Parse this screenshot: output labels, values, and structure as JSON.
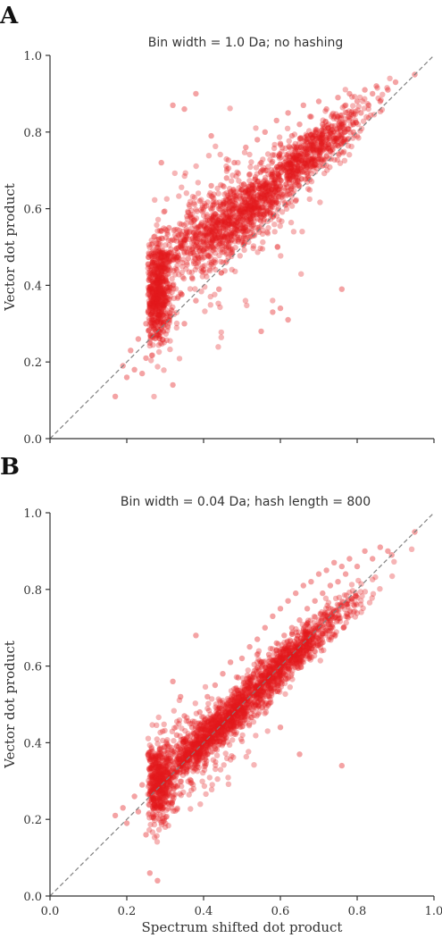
{
  "chart_data": [
    {
      "type": "scatter",
      "panel_letter": "A",
      "title": "Bin width = 1.0 Da; no hashing",
      "xlabel": "",
      "ylabel": "Vector dot product",
      "xlim": [
        0.0,
        1.0
      ],
      "ylim": [
        0.0,
        1.0
      ],
      "xticks": [
        "0.0",
        "0.2",
        "0.4",
        "0.6",
        "0.8",
        "1.0"
      ],
      "yticks": [
        "0.0",
        "0.2",
        "0.4",
        "0.6",
        "0.8",
        "1.0"
      ],
      "show_xtick_labels": false,
      "grid": false,
      "reference_line": "y = x",
      "point_color": "#e41a1c",
      "line_color": "#808080",
      "points": [
        [
          0.17,
          0.11
        ],
        [
          0.19,
          0.19
        ],
        [
          0.2,
          0.16
        ],
        [
          0.21,
          0.23
        ],
        [
          0.22,
          0.18
        ],
        [
          0.23,
          0.26
        ],
        [
          0.24,
          0.17
        ],
        [
          0.25,
          0.3
        ],
        [
          0.25,
          0.21
        ],
        [
          0.26,
          0.34
        ],
        [
          0.26,
          0.25
        ],
        [
          0.27,
          0.29
        ],
        [
          0.27,
          0.38
        ],
        [
          0.28,
          0.27
        ],
        [
          0.28,
          0.45
        ],
        [
          0.29,
          0.33
        ],
        [
          0.29,
          0.41
        ],
        [
          0.3,
          0.36
        ],
        [
          0.3,
          0.48
        ],
        [
          0.31,
          0.31
        ],
        [
          0.31,
          0.55
        ],
        [
          0.32,
          0.4
        ],
        [
          0.32,
          0.14
        ],
        [
          0.33,
          0.44
        ],
        [
          0.34,
          0.38
        ],
        [
          0.34,
          0.51
        ],
        [
          0.35,
          0.3
        ],
        [
          0.36,
          0.47
        ],
        [
          0.36,
          0.59
        ],
        [
          0.37,
          0.42
        ],
        [
          0.38,
          0.53
        ],
        [
          0.38,
          0.36
        ],
        [
          0.39,
          0.62
        ],
        [
          0.4,
          0.49
        ],
        [
          0.4,
          0.44
        ],
        [
          0.41,
          0.57
        ],
        [
          0.42,
          0.51
        ],
        [
          0.42,
          0.66
        ],
        [
          0.43,
          0.46
        ],
        [
          0.44,
          0.6
        ],
        [
          0.44,
          0.39
        ],
        [
          0.45,
          0.55
        ],
        [
          0.46,
          0.68
        ],
        [
          0.46,
          0.5
        ],
        [
          0.47,
          0.63
        ],
        [
          0.48,
          0.56
        ],
        [
          0.48,
          0.72
        ],
        [
          0.49,
          0.52
        ],
        [
          0.5,
          0.65
        ],
        [
          0.5,
          0.6
        ],
        [
          0.51,
          0.76
        ],
        [
          0.52,
          0.58
        ],
        [
          0.52,
          0.69
        ],
        [
          0.53,
          0.63
        ],
        [
          0.54,
          0.78
        ],
        [
          0.54,
          0.55
        ],
        [
          0.55,
          0.72
        ],
        [
          0.56,
          0.66
        ],
        [
          0.56,
          0.8
        ],
        [
          0.57,
          0.62
        ],
        [
          0.58,
          0.74
        ],
        [
          0.58,
          0.69
        ],
        [
          0.59,
          0.83
        ],
        [
          0.6,
          0.66
        ],
        [
          0.6,
          0.77
        ],
        [
          0.61,
          0.72
        ],
        [
          0.62,
          0.85
        ],
        [
          0.62,
          0.68
        ],
        [
          0.63,
          0.79
        ],
        [
          0.64,
          0.75
        ],
        [
          0.64,
          0.62
        ],
        [
          0.65,
          0.82
        ],
        [
          0.66,
          0.74
        ],
        [
          0.66,
          0.87
        ],
        [
          0.67,
          0.79
        ],
        [
          0.68,
          0.71
        ],
        [
          0.68,
          0.84
        ],
        [
          0.69,
          0.77
        ],
        [
          0.7,
          0.88
        ],
        [
          0.7,
          0.73
        ],
        [
          0.71,
          0.82
        ],
        [
          0.72,
          0.78
        ],
        [
          0.72,
          0.86
        ],
        [
          0.73,
          0.75
        ],
        [
          0.74,
          0.84
        ],
        [
          0.74,
          0.8
        ],
        [
          0.75,
          0.89
        ],
        [
          0.76,
          0.82
        ],
        [
          0.76,
          0.77
        ],
        [
          0.77,
          0.87
        ],
        [
          0.78,
          0.84
        ],
        [
          0.78,
          0.9
        ],
        [
          0.79,
          0.8
        ],
        [
          0.8,
          0.88
        ],
        [
          0.81,
          0.85
        ],
        [
          0.82,
          0.91
        ],
        [
          0.83,
          0.87
        ],
        [
          0.84,
          0.9
        ],
        [
          0.85,
          0.92
        ],
        [
          0.86,
          0.88
        ],
        [
          0.88,
          0.91
        ],
        [
          0.9,
          0.93
        ],
        [
          0.95,
          0.95
        ],
        [
          0.38,
          0.9
        ],
        [
          0.32,
          0.87
        ],
        [
          0.35,
          0.86
        ],
        [
          0.76,
          0.39
        ],
        [
          0.58,
          0.33
        ],
        [
          0.6,
          0.34
        ],
        [
          0.62,
          0.31
        ],
        [
          0.55,
          0.28
        ],
        [
          0.42,
          0.79
        ],
        [
          0.29,
          0.72
        ]
      ],
      "clusters": [
        {
          "count": 650,
          "cx": 0.28,
          "cy": 0.38,
          "sx": 0.018,
          "sy": 0.07,
          "r": 0
        },
        {
          "count": 950,
          "cx": 0.47,
          "cy": 0.57,
          "sx": 0.09,
          "sy": 0.055,
          "r": 0.55
        },
        {
          "count": 700,
          "cx": 0.67,
          "cy": 0.74,
          "sx": 0.075,
          "sy": 0.05,
          "r": 0.75
        },
        {
          "count": 200,
          "cx": 0.4,
          "cy": 0.52,
          "sx": 0.1,
          "sy": 0.12,
          "r": 0.25
        }
      ]
    },
    {
      "type": "scatter",
      "panel_letter": "B",
      "title": "Bin width = 0.04 Da; hash length = 800",
      "xlabel": "Spectrum shifted dot product",
      "ylabel": "Vector dot product",
      "xlim": [
        0.0,
        1.0
      ],
      "ylim": [
        0.0,
        1.0
      ],
      "xticks": [
        "0.0",
        "0.2",
        "0.4",
        "0.6",
        "0.8",
        "1.0"
      ],
      "yticks": [
        "0.0",
        "0.2",
        "0.4",
        "0.6",
        "0.8",
        "1.0"
      ],
      "show_xtick_labels": true,
      "grid": false,
      "reference_line": "y = x",
      "point_color": "#e41a1c",
      "line_color": "#808080",
      "points": [
        [
          0.17,
          0.21
        ],
        [
          0.19,
          0.23
        ],
        [
          0.2,
          0.19
        ],
        [
          0.22,
          0.26
        ],
        [
          0.23,
          0.22
        ],
        [
          0.24,
          0.29
        ],
        [
          0.25,
          0.16
        ],
        [
          0.26,
          0.06
        ],
        [
          0.26,
          0.33
        ],
        [
          0.27,
          0.25
        ],
        [
          0.28,
          0.04
        ],
        [
          0.28,
          0.3
        ],
        [
          0.29,
          0.36
        ],
        [
          0.3,
          0.27
        ],
        [
          0.31,
          0.39
        ],
        [
          0.32,
          0.31
        ],
        [
          0.33,
          0.42
        ],
        [
          0.34,
          0.34
        ],
        [
          0.35,
          0.47
        ],
        [
          0.36,
          0.38
        ],
        [
          0.37,
          0.44
        ],
        [
          0.38,
          0.68
        ],
        [
          0.38,
          0.36
        ],
        [
          0.39,
          0.48
        ],
        [
          0.4,
          0.41
        ],
        [
          0.41,
          0.52
        ],
        [
          0.42,
          0.45
        ],
        [
          0.43,
          0.55
        ],
        [
          0.44,
          0.48
        ],
        [
          0.45,
          0.58
        ],
        [
          0.46,
          0.5
        ],
        [
          0.47,
          0.61
        ],
        [
          0.48,
          0.53
        ],
        [
          0.49,
          0.57
        ],
        [
          0.5,
          0.62
        ],
        [
          0.51,
          0.55
        ],
        [
          0.52,
          0.65
        ],
        [
          0.53,
          0.58
        ],
        [
          0.54,
          0.67
        ],
        [
          0.55,
          0.61
        ],
        [
          0.56,
          0.7
        ],
        [
          0.57,
          0.63
        ],
        [
          0.58,
          0.73
        ],
        [
          0.59,
          0.66
        ],
        [
          0.6,
          0.75
        ],
        [
          0.61,
          0.68
        ],
        [
          0.62,
          0.77
        ],
        [
          0.63,
          0.7
        ],
        [
          0.64,
          0.79
        ],
        [
          0.65,
          0.72
        ],
        [
          0.66,
          0.81
        ],
        [
          0.67,
          0.75
        ],
        [
          0.68,
          0.82
        ],
        [
          0.69,
          0.77
        ],
        [
          0.7,
          0.84
        ],
        [
          0.71,
          0.79
        ],
        [
          0.72,
          0.85
        ],
        [
          0.73,
          0.81
        ],
        [
          0.74,
          0.87
        ],
        [
          0.75,
          0.82
        ],
        [
          0.76,
          0.86
        ],
        [
          0.77,
          0.84
        ],
        [
          0.78,
          0.88
        ],
        [
          0.8,
          0.86
        ],
        [
          0.82,
          0.9
        ],
        [
          0.84,
          0.88
        ],
        [
          0.86,
          0.91
        ],
        [
          0.88,
          0.9
        ],
        [
          0.89,
          0.89
        ],
        [
          0.95,
          0.95
        ],
        [
          0.32,
          0.56
        ],
        [
          0.34,
          0.52
        ],
        [
          0.76,
          0.34
        ],
        [
          0.65,
          0.37
        ],
        [
          0.6,
          0.44
        ]
      ],
      "clusters": [
        {
          "count": 450,
          "cx": 0.28,
          "cy": 0.29,
          "sx": 0.018,
          "sy": 0.05,
          "r": 0
        },
        {
          "count": 1100,
          "cx": 0.44,
          "cy": 0.44,
          "sx": 0.08,
          "sy": 0.045,
          "r": 0.8
        },
        {
          "count": 900,
          "cx": 0.63,
          "cy": 0.63,
          "sx": 0.085,
          "sy": 0.045,
          "r": 0.82
        },
        {
          "count": 250,
          "cx": 0.36,
          "cy": 0.36,
          "sx": 0.07,
          "sy": 0.07,
          "r": 0.3
        }
      ]
    }
  ]
}
